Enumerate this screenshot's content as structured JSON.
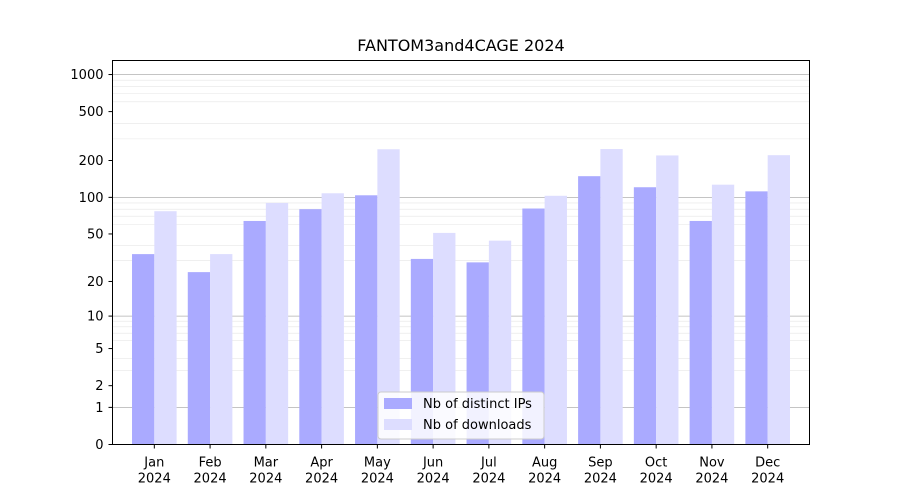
{
  "chart_data": {
    "type": "bar",
    "title": "FANTOM3and4CAGE 2024",
    "xlabel": "",
    "ylabel": "",
    "yscale": "symlog",
    "ylim": [
      0,
      1300
    ],
    "y_ticks": [
      0,
      1,
      2,
      5,
      10,
      20,
      50,
      100,
      200,
      500,
      1000
    ],
    "grid": "horizontal",
    "legend_position": "bottom-center",
    "categories": [
      "Jan\n2024",
      "Feb\n2024",
      "Mar\n2024",
      "Apr\n2024",
      "May\n2024",
      "Jun\n2024",
      "Jul\n2024",
      "Aug\n2024",
      "Sep\n2024",
      "Oct\n2024",
      "Nov\n2024",
      "Dec\n2024"
    ],
    "series": [
      {
        "name": "Nb of distinct IPs",
        "color": "#aaaaff",
        "values": [
          34,
          24,
          64,
          80,
          104,
          31,
          29,
          81,
          149,
          121,
          64,
          112
        ]
      },
      {
        "name": "Nb of downloads",
        "color": "#ddddff",
        "values": [
          77,
          34,
          90,
          108,
          247,
          51,
          44,
          103,
          248,
          220,
          127,
          221
        ]
      }
    ]
  }
}
